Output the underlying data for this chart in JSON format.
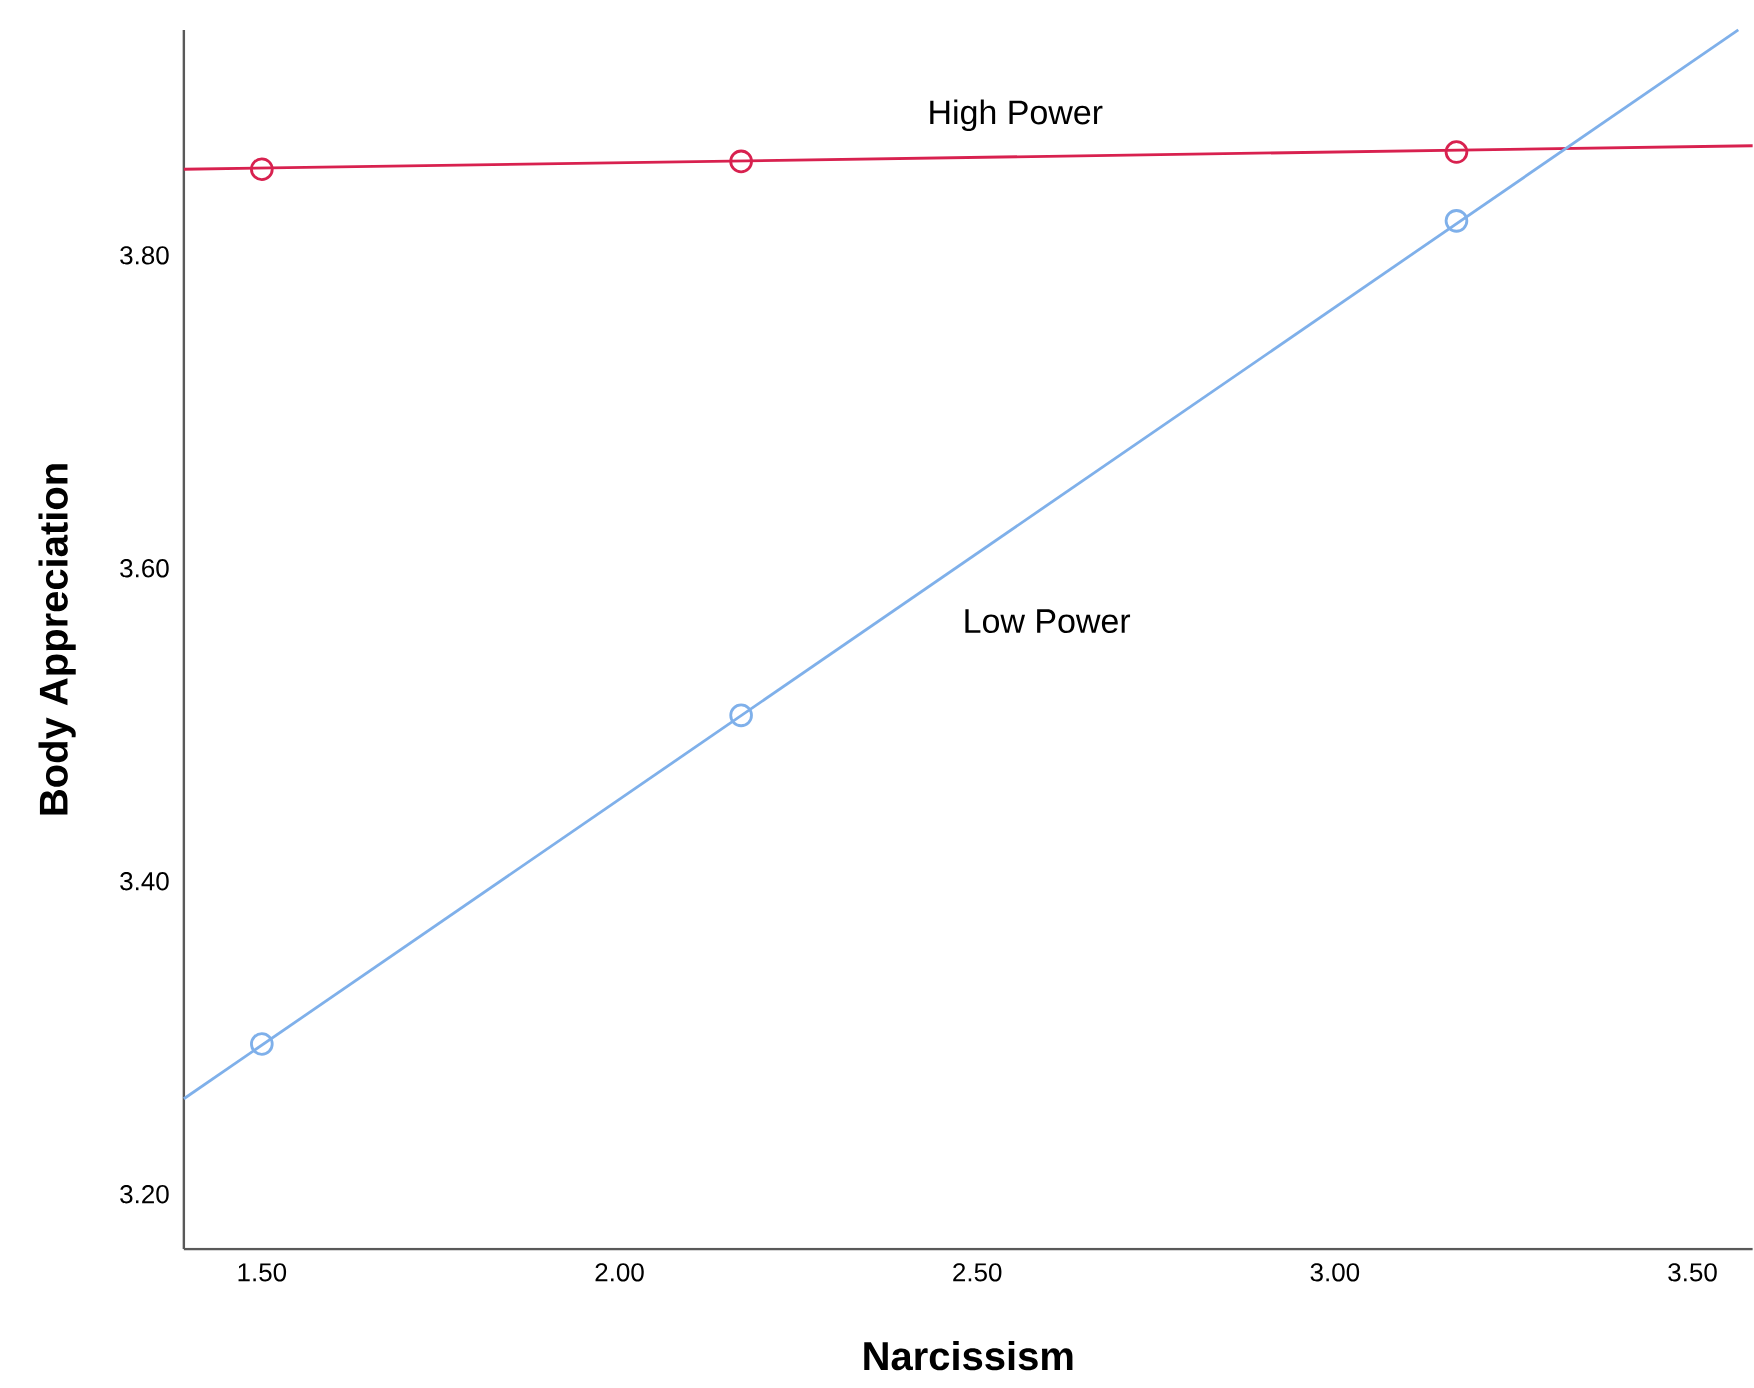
{
  "chart_data": {
    "type": "scatter",
    "xlabel": "Narcissism",
    "ylabel": "Body Appreciation",
    "xlim": [
      1.391,
      3.584
    ],
    "ylim": [
      3.165,
      3.944
    ],
    "xticks": [
      {
        "value": 1.5,
        "label": "1.50"
      },
      {
        "value": 2.0,
        "label": "2.00"
      },
      {
        "value": 2.5,
        "label": "2.50"
      },
      {
        "value": 3.0,
        "label": "3.00"
      },
      {
        "value": 3.5,
        "label": "3.50"
      }
    ],
    "yticks": [
      {
        "value": 3.2,
        "label": "3.20"
      },
      {
        "value": 3.4,
        "label": "3.40"
      },
      {
        "value": 3.6,
        "label": "3.60"
      },
      {
        "value": 3.8,
        "label": "3.80"
      }
    ],
    "grid": false,
    "marker": "circle",
    "series": [
      {
        "color": "#d8214f",
        "x": [
          1.5,
          2.17,
          3.17
        ],
        "values": [
          3.855,
          3.86,
          3.866
        ]
      },
      {
        "color": "#7fb0ea",
        "x": [
          1.5,
          2.17,
          3.17
        ],
        "values": [
          3.296,
          3.506,
          3.822
        ]
      },
      {
        "type": "line",
        "name": "High Power",
        "color": "#d8214f",
        "marker": "none",
        "x": [
          1.391,
          3.584
        ],
        "values": [
          3.855,
          3.87
        ]
      },
      {
        "type": "line",
        "name": "Low Power",
        "color": "#7fb0ea",
        "marker": "none",
        "x": [
          1.391,
          3.564
        ],
        "values": [
          3.261,
          3.944
        ]
      }
    ]
  }
}
